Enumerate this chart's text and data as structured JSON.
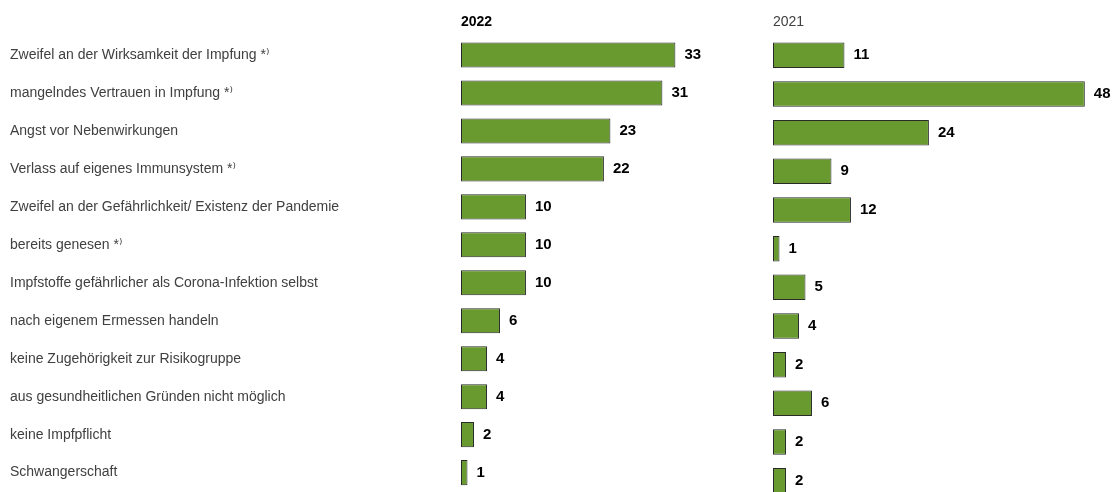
{
  "chart_data": [
    {
      "type": "bar",
      "orientation": "horizontal",
      "title": "2022",
      "categories": [
        "Zweifel an der Wirksamkeit der Impfung *⁾",
        "mangelndes Vertrauen in Impfung *⁾",
        "Angst vor Nebenwirkungen",
        "Verlass auf eigenes Immunsystem *⁾",
        "Zweifel an der Gefährlichkeit/ Existenz der Pandemie",
        "bereits genesen *⁾",
        "Impfstoffe gefährlicher als Corona-Infektion selbst",
        "nach eigenem Ermessen handeln",
        "keine Zugehörigkeit zur Risikogruppe",
        "aus gesundheitlichen Gründen nicht möglich",
        "keine Impfpflicht",
        "Schwangerschaft"
      ],
      "values": [
        33,
        31,
        23,
        22,
        10,
        10,
        10,
        6,
        4,
        4,
        2,
        1
      ],
      "color": "#689a30",
      "data_labels": true,
      "tick_labels": "y"
    },
    {
      "type": "bar",
      "orientation": "horizontal",
      "title": "2021",
      "categories": [
        null,
        null,
        null,
        null,
        null,
        null,
        null,
        null,
        null,
        null,
        null,
        null
      ],
      "values": [
        11,
        48,
        24,
        9,
        12,
        1,
        5,
        4,
        2,
        6,
        2,
        2
      ],
      "color": "#689a30",
      "data_labels": true,
      "tick_labels": false
    }
  ]
}
